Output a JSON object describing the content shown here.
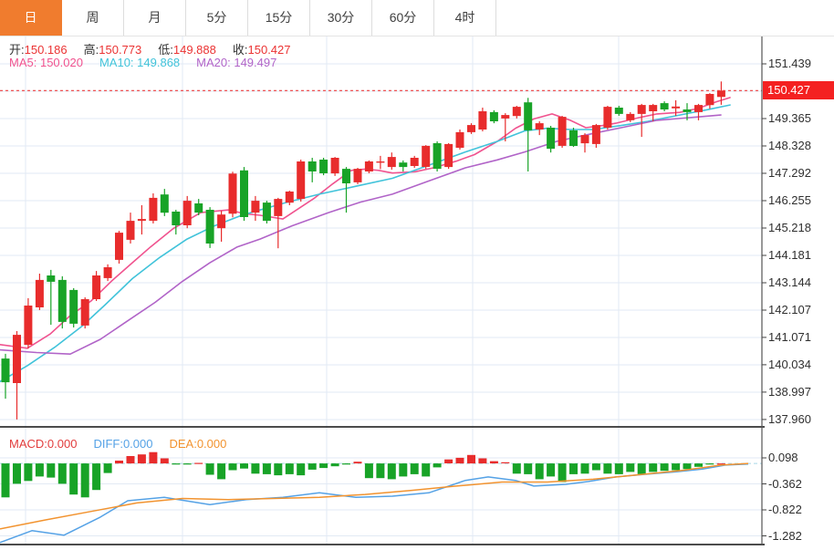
{
  "tab_bar": {
    "items": [
      {
        "key": "day",
        "label": "日",
        "active": true
      },
      {
        "key": "week",
        "label": "周",
        "active": false
      },
      {
        "key": "month",
        "label": "月",
        "active": false
      },
      {
        "key": "5min",
        "label": "5分",
        "active": false
      },
      {
        "key": "15min",
        "label": "15分",
        "active": false
      },
      {
        "key": "30min",
        "label": "30分",
        "active": false
      },
      {
        "key": "60min",
        "label": "60分",
        "active": false
      },
      {
        "key": "4hour",
        "label": "4时",
        "active": false
      }
    ]
  },
  "legend": {
    "ohlc": [
      {
        "key": "open",
        "label": "开:",
        "value": "150.186"
      },
      {
        "key": "high",
        "label": "高:",
        "value": "150.773"
      },
      {
        "key": "low",
        "label": "低:",
        "value": "149.888"
      },
      {
        "key": "close",
        "label": "收:",
        "value": "150.427"
      }
    ],
    "ma": [
      {
        "key": "ma5",
        "label": "MA5: ",
        "value": "150.020",
        "color": "#f0538f"
      },
      {
        "key": "ma10",
        "label": "MA10: ",
        "value": "149.868",
        "color": "#41c3da"
      },
      {
        "key": "ma20",
        "label": "MA20: ",
        "value": "149.497",
        "color": "#b164c8"
      }
    ]
  },
  "macd_legend": [
    {
      "key": "macd",
      "label": "MACD:",
      "value": "0.000",
      "color": "#e23c3c"
    },
    {
      "key": "diff",
      "label": "DIFF:",
      "value": "0.000",
      "color": "#55a2e6"
    },
    {
      "key": "dea",
      "label": "DEA:",
      "value": "0.000",
      "color": "#f2932f"
    }
  ],
  "chart_data": {
    "type": "candlestick",
    "title": "",
    "panels": [
      "price",
      "macd"
    ],
    "ylim": [
      137.3,
      151.9
    ],
    "price_axis_ticks": [
      {
        "text": "151.439",
        "price": 151.439
      },
      {
        "text": "149.365",
        "price": 149.365
      },
      {
        "text": "148.328",
        "price": 148.328
      },
      {
        "text": "147.292",
        "price": 147.292
      },
      {
        "text": "146.255",
        "price": 146.255
      },
      {
        "text": "145.218",
        "price": 145.218
      },
      {
        "text": "144.181",
        "price": 144.181
      },
      {
        "text": "143.144",
        "price": 143.144
      },
      {
        "text": "142.107",
        "price": 142.107
      },
      {
        "text": "141.071",
        "price": 141.071
      },
      {
        "text": "140.034",
        "price": 140.034
      },
      {
        "text": "138.997",
        "price": 138.997
      },
      {
        "text": "137.960",
        "price": 137.96
      }
    ],
    "price_tag": {
      "text": "150.427",
      "price": 150.427
    },
    "grid_vertical_x": [
      28,
      200,
      358,
      518,
      678
    ],
    "colors": {
      "up": "#e82c2c",
      "down": "#18a327",
      "grid": "#e2eaf4",
      "dash_line": "#f04040",
      "tag_bg": "#f42121",
      "axis_line": "#555555",
      "axis_text": "#2f2f2f",
      "separator": "#111111",
      "macd_zero_dash": "#a7d7e8"
    },
    "candles": [
      [
        140.27,
        140.45,
        138.75,
        139.37
      ],
      [
        139.34,
        141.31,
        137.96,
        141.17
      ],
      [
        140.79,
        142.56,
        140.65,
        142.28
      ],
      [
        142.21,
        143.49,
        142.11,
        143.25
      ],
      [
        143.42,
        143.63,
        141.55,
        143.18
      ],
      [
        143.25,
        143.39,
        141.41,
        141.66
      ],
      [
        142.87,
        142.94,
        141.45,
        141.59
      ],
      [
        141.52,
        142.59,
        141.41,
        142.52
      ],
      [
        142.52,
        143.59,
        142.45,
        143.42
      ],
      [
        143.32,
        143.84,
        143.21,
        143.73
      ],
      [
        144.01,
        145.11,
        143.87,
        145.04
      ],
      [
        144.77,
        145.8,
        144.63,
        145.49
      ],
      [
        145.49,
        146.08,
        144.97,
        145.56
      ],
      [
        145.49,
        146.53,
        145.39,
        146.36
      ],
      [
        146.49,
        146.7,
        145.67,
        145.8
      ],
      [
        145.84,
        145.91,
        144.97,
        145.32
      ],
      [
        145.32,
        146.43,
        145.21,
        146.25
      ],
      [
        146.15,
        146.32,
        145.7,
        145.8
      ],
      [
        145.91,
        146.01,
        144.46,
        144.63
      ],
      [
        145.21,
        145.87,
        144.7,
        145.73
      ],
      [
        145.76,
        147.35,
        145.62,
        147.28
      ],
      [
        147.4,
        147.53,
        145.49,
        145.63
      ],
      [
        145.8,
        146.43,
        145.49,
        146.25
      ],
      [
        146.18,
        146.25,
        145.39,
        145.49
      ],
      [
        145.67,
        146.36,
        144.45,
        146.32
      ],
      [
        146.18,
        146.63,
        146.08,
        146.6
      ],
      [
        146.32,
        147.81,
        146.22,
        147.74
      ],
      [
        147.74,
        147.88,
        146.95,
        147.36
      ],
      [
        147.81,
        147.88,
        147.22,
        147.29
      ],
      [
        147.29,
        147.91,
        147.19,
        147.88
      ],
      [
        147.46,
        147.53,
        145.8,
        146.91
      ],
      [
        146.95,
        147.5,
        146.88,
        147.46
      ],
      [
        147.36,
        147.78,
        147.29,
        147.74
      ],
      [
        147.7,
        147.95,
        147.45,
        147.74
      ],
      [
        147.53,
        148.08,
        147.43,
        147.91
      ],
      [
        147.7,
        147.78,
        147.36,
        147.53
      ],
      [
        147.57,
        147.95,
        147.5,
        147.88
      ],
      [
        147.53,
        148.36,
        147.46,
        148.33
      ],
      [
        148.43,
        148.5,
        147.36,
        147.46
      ],
      [
        147.53,
        148.43,
        147.46,
        148.4
      ],
      [
        148.26,
        148.95,
        148.19,
        148.85
      ],
      [
        148.85,
        149.19,
        148.78,
        149.12
      ],
      [
        148.95,
        149.78,
        148.88,
        149.64
      ],
      [
        149.61,
        149.68,
        149.19,
        149.26
      ],
      [
        149.37,
        149.57,
        148.5,
        149.5
      ],
      [
        149.46,
        149.85,
        149.37,
        149.81
      ],
      [
        149.98,
        150.15,
        147.36,
        148.92
      ],
      [
        148.95,
        149.26,
        148.74,
        149.19
      ],
      [
        149.02,
        149.09,
        148.08,
        148.22
      ],
      [
        148.33,
        149.47,
        148.26,
        149.43
      ],
      [
        148.92,
        149.02,
        148.29,
        148.33
      ],
      [
        148.43,
        148.81,
        148.08,
        148.74
      ],
      [
        148.4,
        149.16,
        148.26,
        149.12
      ],
      [
        149.02,
        149.85,
        148.95,
        149.81
      ],
      [
        149.78,
        149.85,
        149.47,
        149.54
      ],
      [
        149.3,
        149.61,
        149.23,
        149.54
      ],
      [
        149.54,
        149.92,
        148.67,
        149.88
      ],
      [
        149.64,
        149.92,
        149.26,
        149.88
      ],
      [
        149.95,
        150.02,
        149.64,
        149.71
      ],
      [
        149.75,
        150.06,
        149.47,
        149.82
      ],
      [
        149.71,
        149.95,
        149.3,
        149.61
      ],
      [
        149.61,
        149.92,
        149.3,
        149.88
      ],
      [
        149.88,
        150.33,
        149.74,
        150.3
      ],
      [
        150.186,
        150.773,
        149.888,
        150.427
      ]
    ],
    "ma_lines": [
      {
        "name": "MA5",
        "color": "#f0538f",
        "points": [
          [
            0,
            140.8
          ],
          [
            30,
            140.66
          ],
          [
            55,
            141.2
          ],
          [
            77,
            141.9
          ],
          [
            100,
            142.46
          ],
          [
            122,
            143.2
          ],
          [
            145,
            143.9
          ],
          [
            165,
            144.5
          ],
          [
            190,
            145.2
          ],
          [
            220,
            145.8
          ],
          [
            250,
            145.9
          ],
          [
            270,
            145.75
          ],
          [
            285,
            145.7
          ],
          [
            310,
            145.56
          ],
          [
            345,
            146.36
          ],
          [
            365,
            146.9
          ],
          [
            385,
            147.4
          ],
          [
            400,
            147.45
          ],
          [
            415,
            147.4
          ],
          [
            430,
            147.3
          ],
          [
            455,
            147.35
          ],
          [
            475,
            147.5
          ],
          [
            500,
            147.75
          ],
          [
            520,
            148.0
          ],
          [
            545,
            148.5
          ],
          [
            565,
            149.0
          ],
          [
            585,
            149.35
          ],
          [
            605,
            149.54
          ],
          [
            625,
            149.3
          ],
          [
            642,
            149.02
          ],
          [
            660,
            149.1
          ],
          [
            675,
            149.19
          ],
          [
            700,
            149.4
          ],
          [
            720,
            149.54
          ],
          [
            745,
            149.6
          ],
          [
            765,
            149.75
          ],
          [
            785,
            150.0
          ],
          [
            800,
            150.16
          ]
        ]
      },
      {
        "name": "MA10",
        "color": "#41c3da",
        "points": [
          [
            0,
            139.4
          ],
          [
            30,
            140.0
          ],
          [
            60,
            140.7
          ],
          [
            90,
            141.5
          ],
          [
            115,
            142.3
          ],
          [
            145,
            143.3
          ],
          [
            175,
            144.1
          ],
          [
            205,
            144.8
          ],
          [
            235,
            145.3
          ],
          [
            265,
            145.7
          ],
          [
            285,
            145.9
          ],
          [
            315,
            146.2
          ],
          [
            350,
            146.5
          ],
          [
            390,
            146.8
          ],
          [
            430,
            147.1
          ],
          [
            470,
            147.6
          ],
          [
            510,
            148.1
          ],
          [
            545,
            148.5
          ],
          [
            575,
            148.9
          ],
          [
            600,
            149.0
          ],
          [
            625,
            148.95
          ],
          [
            650,
            148.95
          ],
          [
            680,
            149.1
          ],
          [
            710,
            149.26
          ],
          [
            745,
            149.5
          ],
          [
            775,
            149.7
          ],
          [
            800,
            149.88
          ]
        ]
      },
      {
        "name": "MA20",
        "color": "#b164c8",
        "points": [
          [
            0,
            140.6
          ],
          [
            40,
            140.5
          ],
          [
            77,
            140.44
          ],
          [
            110,
            141.0
          ],
          [
            140,
            141.7
          ],
          [
            170,
            142.4
          ],
          [
            200,
            143.2
          ],
          [
            230,
            143.9
          ],
          [
            260,
            144.5
          ],
          [
            285,
            144.8
          ],
          [
            320,
            145.3
          ],
          [
            360,
            145.8
          ],
          [
            395,
            146.2
          ],
          [
            430,
            146.5
          ],
          [
            470,
            147.0
          ],
          [
            510,
            147.5
          ],
          [
            545,
            147.8
          ],
          [
            575,
            148.1
          ],
          [
            610,
            148.5
          ],
          [
            650,
            148.8
          ],
          [
            685,
            149.05
          ],
          [
            720,
            149.3
          ],
          [
            755,
            149.4
          ],
          [
            790,
            149.5
          ]
        ]
      }
    ],
    "macd": {
      "ticks": [
        {
          "text": "0.098",
          "value": 0.098
        },
        {
          "text": "-0.362",
          "value": -0.362
        },
        {
          "text": "-0.822",
          "value": -0.822
        },
        {
          "text": "-1.282",
          "value": -1.282
        }
      ],
      "hist": [
        -0.6,
        -0.36,
        -0.31,
        -0.23,
        -0.25,
        -0.36,
        -0.55,
        -0.6,
        -0.47,
        -0.17,
        0.05,
        0.13,
        0.16,
        0.2,
        0.09,
        -0.02,
        -0.02,
        0.01,
        -0.2,
        -0.28,
        -0.12,
        -0.09,
        -0.18,
        -0.19,
        -0.21,
        -0.19,
        -0.21,
        -0.11,
        -0.08,
        -0.05,
        -0.02,
        0.03,
        -0.26,
        -0.26,
        -0.28,
        -0.23,
        -0.19,
        -0.23,
        -0.07,
        0.07,
        0.1,
        0.15,
        0.09,
        0.04,
        0.02,
        -0.18,
        -0.19,
        -0.28,
        -0.23,
        -0.33,
        -0.19,
        -0.18,
        -0.12,
        -0.18,
        -0.19,
        -0.15,
        -0.19,
        -0.15,
        -0.13,
        -0.12,
        -0.1,
        -0.06,
        -0.02,
        0.0
      ],
      "diff": {
        "name": "DIFF",
        "color": "#55a2e6",
        "points": [
          [
            0,
            -1.4
          ],
          [
            35,
            -1.19
          ],
          [
            70,
            -1.27
          ],
          [
            110,
            -0.95
          ],
          [
            140,
            -0.66
          ],
          [
            180,
            -0.6
          ],
          [
            230,
            -0.73
          ],
          [
            270,
            -0.64
          ],
          [
            310,
            -0.6
          ],
          [
            350,
            -0.52
          ],
          [
            390,
            -0.6
          ],
          [
            430,
            -0.58
          ],
          [
            470,
            -0.52
          ],
          [
            510,
            -0.3
          ],
          [
            535,
            -0.24
          ],
          [
            565,
            -0.3
          ],
          [
            585,
            -0.4
          ],
          [
            620,
            -0.37
          ],
          [
            645,
            -0.32
          ],
          [
            675,
            -0.24
          ],
          [
            710,
            -0.19
          ],
          [
            740,
            -0.15
          ],
          [
            770,
            -0.1
          ],
          [
            795,
            -0.03
          ],
          [
            820,
            -0.01
          ]
        ]
      },
      "dea": {
        "name": "DEA",
        "color": "#f2932f",
        "points": [
          [
            0,
            -1.16
          ],
          [
            50,
            -1.0
          ],
          [
            100,
            -0.85
          ],
          [
            150,
            -0.7
          ],
          [
            200,
            -0.62
          ],
          [
            250,
            -0.64
          ],
          [
            300,
            -0.62
          ],
          [
            350,
            -0.6
          ],
          [
            400,
            -0.55
          ],
          [
            450,
            -0.48
          ],
          [
            500,
            -0.4
          ],
          [
            550,
            -0.33
          ],
          [
            600,
            -0.33
          ],
          [
            650,
            -0.28
          ],
          [
            700,
            -0.2
          ],
          [
            750,
            -0.12
          ],
          [
            790,
            -0.03
          ],
          [
            820,
            0.0
          ]
        ]
      }
    }
  }
}
